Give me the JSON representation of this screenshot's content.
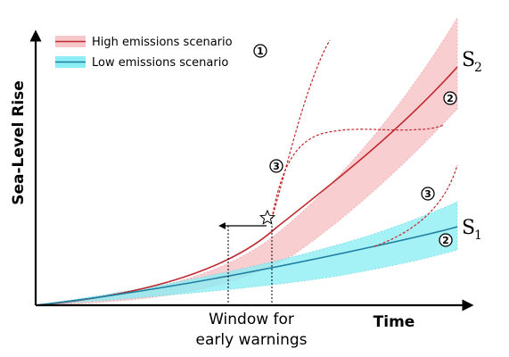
{
  "colors": {
    "high": "#c0282d",
    "high_band": "#f7c6c9",
    "low": "#1f7fa0",
    "low_band": "#8eeef5",
    "axis": "#000000"
  },
  "axes": {
    "y_label": "Sea-Level Rise",
    "x_label": "Time"
  },
  "legend": {
    "high_label": "High emissions scenario",
    "low_label": "Low emissions scenario"
  },
  "markers": {
    "m1": "1",
    "m2_high": "2",
    "m2_low": "2",
    "m3_high": "3",
    "m3_low": "3"
  },
  "scenarios": {
    "s2_main": "S",
    "s2_sub": "2",
    "s1_main": "S",
    "s1_sub": "1"
  },
  "window": {
    "line1": "Window for",
    "line2": "early warnings"
  },
  "warning_icon": "star-icon"
}
